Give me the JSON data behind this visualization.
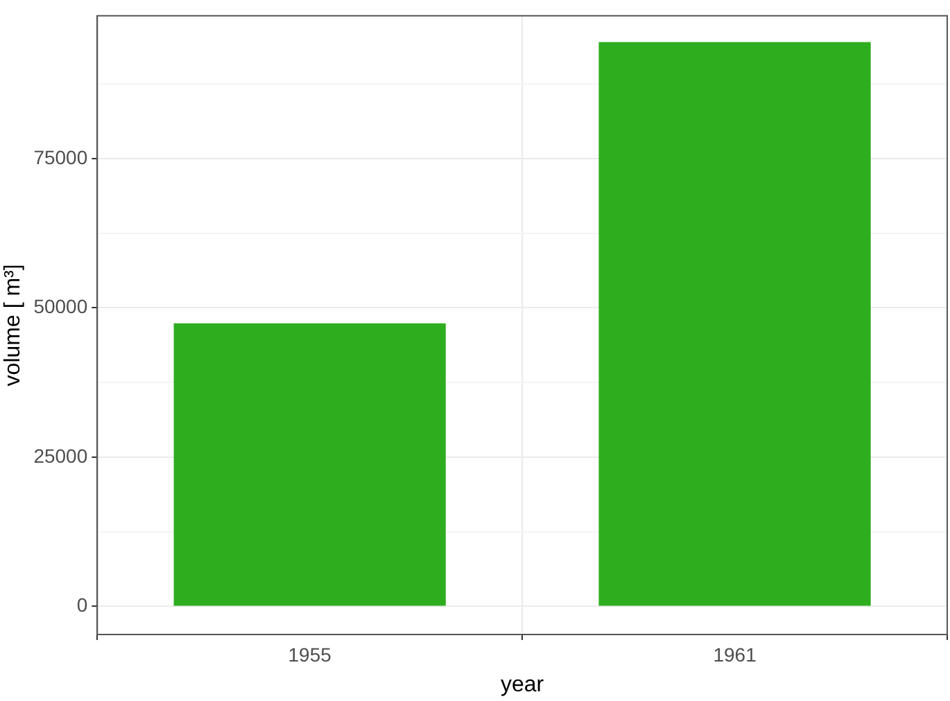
{
  "chart_data": {
    "type": "bar",
    "xlabel": "year",
    "ylabel": "volume [ m³]",
    "categories": [
      "1955",
      "1961"
    ],
    "values": [
      47400,
      94500
    ],
    "color": "#2eae1e",
    "ylim": [
      -4700,
      98900
    ],
    "yticks": [
      0,
      {
        "value": 12500,
        "label": null
      },
      25000,
      {
        "value": 37500,
        "label": null
      },
      50000,
      {
        "value": 62500,
        "label": null
      },
      75000,
      {
        "value": 87500,
        "label": null
      }
    ],
    "grid": true,
    "legend": false
  }
}
